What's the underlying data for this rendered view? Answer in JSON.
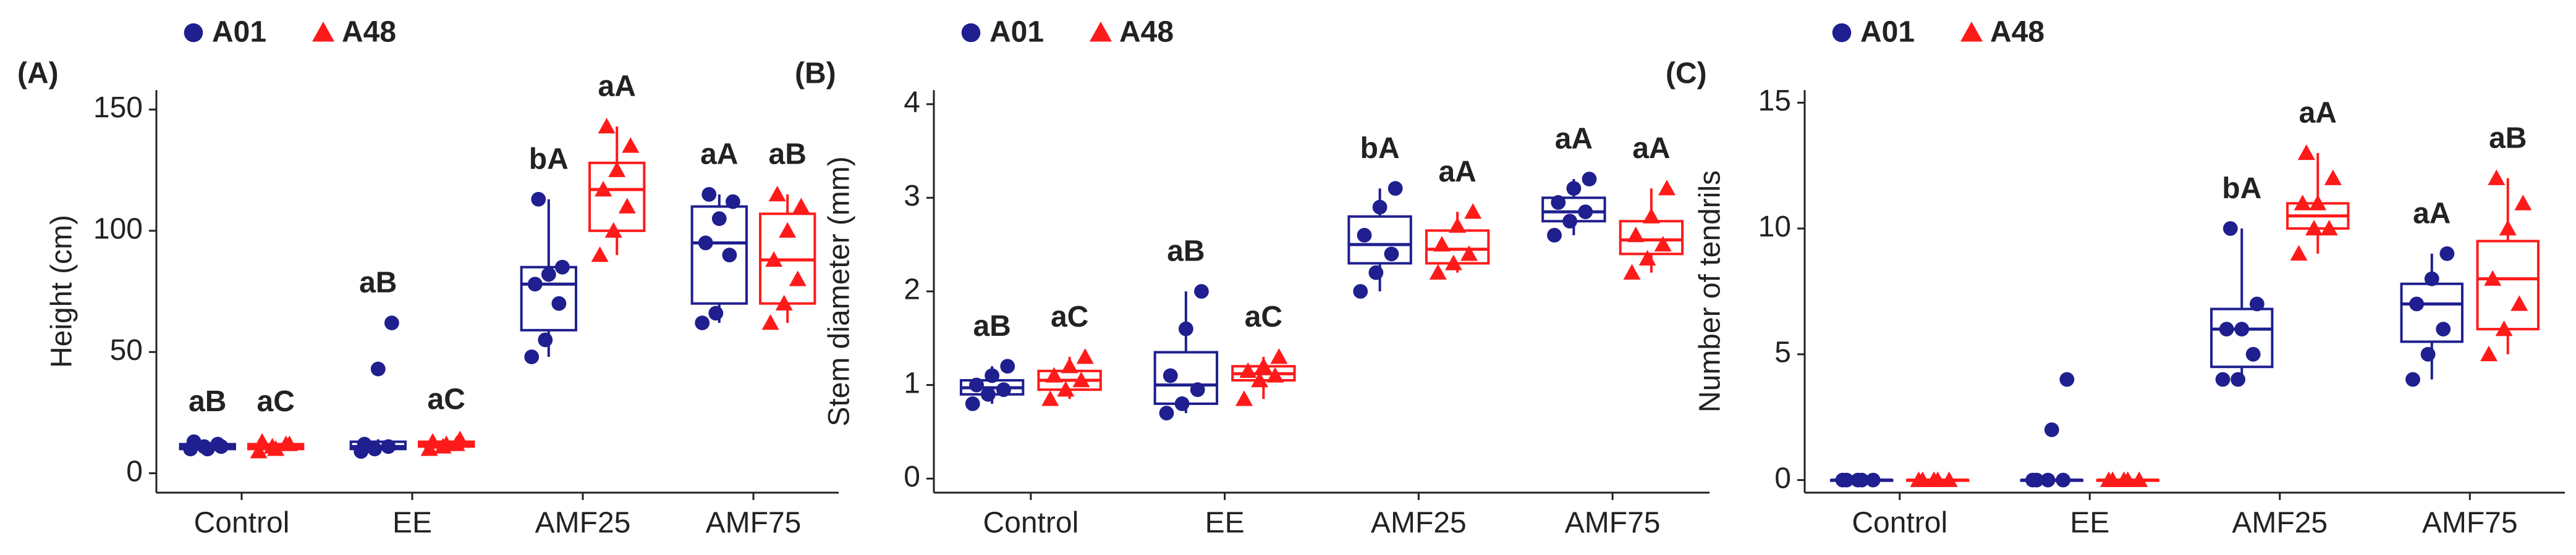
{
  "chart_data": [
    {
      "type": "box",
      "panel_label": "(A)",
      "ylabel": "Height (cm)",
      "categories": [
        "Control",
        "EE",
        "AMF25",
        "AMF75"
      ],
      "ylim": [
        -8,
        158
      ],
      "yticks": [
        0,
        50,
        100,
        150
      ],
      "series": [
        {
          "name": "A01",
          "color": "#1f1f8f",
          "marker": "circle",
          "letters": [
            "aB",
            "aB",
            "bA",
            "aA"
          ],
          "boxes": [
            {
              "min": 9,
              "q1": 10,
              "median": 11,
              "q3": 12,
              "max": 13,
              "points": [
                10,
                11,
                12,
                13,
                10,
                11
              ]
            },
            {
              "min": 8,
              "q1": 10,
              "median": 11,
              "q3": 13,
              "max": 14,
              "points": [
                9,
                10,
                11,
                12,
                43,
                62
              ]
            },
            {
              "min": 48,
              "q1": 59,
              "median": 78,
              "q3": 85,
              "max": 113,
              "points": [
                48,
                55,
                70,
                78,
                82,
                85,
                113
              ]
            },
            {
              "min": 62,
              "q1": 70,
              "median": 95,
              "q3": 110,
              "max": 115,
              "points": [
                62,
                66,
                90,
                95,
                105,
                112,
                115
              ]
            }
          ]
        },
        {
          "name": "A48",
          "color": "#ff1a1a",
          "marker": "triangle",
          "letters": [
            "aC",
            "aC",
            "aA",
            "aB"
          ],
          "boxes": [
            {
              "min": 9,
              "q1": 10,
              "median": 11,
              "q3": 12,
              "max": 13,
              "points": [
                9,
                11,
                12,
                13,
                10,
                12
              ]
            },
            {
              "min": 10,
              "q1": 11,
              "median": 12,
              "q3": 13,
              "max": 14,
              "points": [
                10,
                11,
                12,
                13,
                12,
                14
              ]
            },
            {
              "min": 90,
              "q1": 100,
              "median": 117,
              "q3": 128,
              "max": 143,
              "points": [
                90,
                100,
                110,
                117,
                125,
                135,
                143
              ]
            },
            {
              "min": 62,
              "q1": 70,
              "median": 88,
              "q3": 107,
              "max": 115,
              "points": [
                62,
                70,
                80,
                88,
                100,
                110,
                115
              ]
            }
          ]
        }
      ]
    },
    {
      "type": "box",
      "panel_label": "(B)",
      "ylabel": "Stem diameter (mm)",
      "categories": [
        "Control",
        "EE",
        "AMF25",
        "AMF75"
      ],
      "ylim": [
        -0.15,
        4.15
      ],
      "yticks": [
        0,
        1,
        2,
        3,
        4
      ],
      "series": [
        {
          "name": "A01",
          "color": "#1f1f8f",
          "marker": "circle",
          "letters": [
            "aB",
            "aB",
            "bA",
            "aA"
          ],
          "boxes": [
            {
              "min": 0.8,
              "q1": 0.9,
              "median": 0.97,
              "q3": 1.05,
              "max": 1.2,
              "points": [
                0.8,
                0.9,
                0.95,
                1.0,
                1.1,
                1.2
              ]
            },
            {
              "min": 0.7,
              "q1": 0.8,
              "median": 1.0,
              "q3": 1.35,
              "max": 2.0,
              "points": [
                0.7,
                0.8,
                0.95,
                1.1,
                1.6,
                2.0
              ]
            },
            {
              "min": 2.0,
              "q1": 2.3,
              "median": 2.5,
              "q3": 2.8,
              "max": 3.1,
              "points": [
                2.0,
                2.2,
                2.4,
                2.6,
                2.9,
                3.1
              ]
            },
            {
              "min": 2.6,
              "q1": 2.75,
              "median": 2.85,
              "q3": 3.0,
              "max": 3.2,
              "points": [
                2.6,
                2.75,
                2.85,
                2.95,
                3.1,
                3.2
              ]
            }
          ]
        },
        {
          "name": "A48",
          "color": "#ff1a1a",
          "marker": "triangle",
          "letters": [
            "aC",
            "aC",
            "aA",
            "aA"
          ],
          "boxes": [
            {
              "min": 0.85,
              "q1": 0.95,
              "median": 1.05,
              "q3": 1.15,
              "max": 1.3,
              "points": [
                0.85,
                0.95,
                1.05,
                1.1,
                1.2,
                1.3
              ]
            },
            {
              "min": 0.85,
              "q1": 1.05,
              "median": 1.12,
              "q3": 1.2,
              "max": 1.3,
              "points": [
                0.85,
                1.05,
                1.1,
                1.15,
                1.2,
                1.3
              ]
            },
            {
              "min": 2.2,
              "q1": 2.3,
              "median": 2.45,
              "q3": 2.65,
              "max": 2.85,
              "points": [
                2.2,
                2.3,
                2.4,
                2.5,
                2.7,
                2.85
              ]
            },
            {
              "min": 2.2,
              "q1": 2.4,
              "median": 2.55,
              "q3": 2.75,
              "max": 3.1,
              "points": [
                2.2,
                2.35,
                2.5,
                2.6,
                2.8,
                3.1
              ]
            }
          ]
        }
      ]
    },
    {
      "type": "box",
      "panel_label": "(C)",
      "ylabel": "Number of tendrils",
      "categories": [
        "Control",
        "EE",
        "AMF25",
        "AMF75"
      ],
      "ylim": [
        -0.5,
        15.5
      ],
      "yticks": [
        0,
        5,
        10,
        15
      ],
      "series": [
        {
          "name": "A01",
          "color": "#1f1f8f",
          "marker": "circle",
          "letters": [
            null,
            null,
            "bA",
            "aA"
          ],
          "boxes": [
            {
              "min": 0,
              "q1": 0,
              "median": 0,
              "q3": 0,
              "max": 0,
              "points": [
                0,
                0,
                0,
                0,
                0
              ]
            },
            {
              "min": 0,
              "q1": 0,
              "median": 0,
              "q3": 0,
              "max": 0,
              "points": [
                0,
                0,
                0,
                0,
                2,
                4
              ]
            },
            {
              "min": 4,
              "q1": 4.5,
              "median": 6,
              "q3": 6.8,
              "max": 10,
              "points": [
                4,
                4,
                5,
                6,
                6,
                7,
                10
              ]
            },
            {
              "min": 4,
              "q1": 5.5,
              "median": 7,
              "q3": 7.8,
              "max": 9,
              "points": [
                4,
                5,
                6,
                7,
                8,
                9
              ]
            }
          ]
        },
        {
          "name": "A48",
          "color": "#ff1a1a",
          "marker": "triangle",
          "letters": [
            null,
            null,
            "aA",
            "aB"
          ],
          "boxes": [
            {
              "min": 0,
              "q1": 0,
              "median": 0,
              "q3": 0,
              "max": 0,
              "points": [
                0,
                0,
                0,
                0,
                0
              ]
            },
            {
              "min": 0,
              "q1": 0,
              "median": 0,
              "q3": 0,
              "max": 0,
              "points": [
                0,
                0,
                0,
                0,
                0
              ]
            },
            {
              "min": 9,
              "q1": 10,
              "median": 10.5,
              "q3": 11,
              "max": 13,
              "points": [
                9,
                10,
                10,
                11,
                11,
                12,
                13
              ]
            },
            {
              "min": 5,
              "q1": 6,
              "median": 8,
              "q3": 9.5,
              "max": 12,
              "points": [
                5,
                6,
                7,
                8,
                10,
                11,
                12
              ]
            }
          ]
        }
      ]
    }
  ]
}
